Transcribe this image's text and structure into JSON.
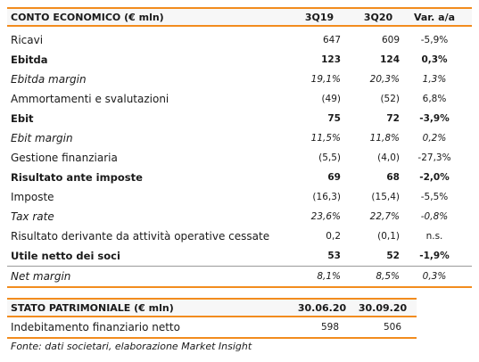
{
  "income": {
    "title": "CONTO ECONOMICO (€ mln)",
    "col1": "3Q19",
    "col2": "3Q20",
    "col3": "Var. a/a",
    "rows": [
      {
        "label": "Ricavi",
        "v1": "647",
        "v2": "609",
        "v3": "-5,9%"
      },
      {
        "label": "Ebitda",
        "v1": "123",
        "v2": "124",
        "v3": "0,3%"
      },
      {
        "label": "Ebitda margin",
        "v1": "19,1%",
        "v2": "20,3%",
        "v3": "1,3%"
      },
      {
        "label": "Ammortamenti e svalutazioni",
        "v1": "(49)",
        "v2": "(52)",
        "v3": "6,8%"
      },
      {
        "label": "Ebit",
        "v1": "75",
        "v2": "72",
        "v3": "-3,9%"
      },
      {
        "label": "Ebit margin",
        "v1": "11,5%",
        "v2": "11,8%",
        "v3": "0,2%"
      },
      {
        "label": "Gestione finanziaria",
        "v1": "(5,5)",
        "v2": "(4,0)",
        "v3": "-27,3%"
      },
      {
        "label": "Risultato ante imposte",
        "v1": "69",
        "v2": "68",
        "v3": "-2,0%"
      },
      {
        "label": "Imposte",
        "v1": "(16,3)",
        "v2": "(15,4)",
        "v3": "-5,5%"
      },
      {
        "label": "Tax rate",
        "v1": "23,6%",
        "v2": "22,7%",
        "v3": "-0,8%"
      },
      {
        "label": "Risultato derivante da attività operative cessate",
        "v1": "0,2",
        "v2": "(0,1)",
        "v3": "n.s."
      },
      {
        "label": "Utile netto dei soci",
        "v1": "53",
        "v2": "52",
        "v3": "-1,9%"
      },
      {
        "label": "Net margin",
        "v1": "8,1%",
        "v2": "8,5%",
        "v3": "0,3%"
      }
    ]
  },
  "balance": {
    "title": "STATO PATRIMONIALE  (€ mln)",
    "col1": "30.06.20",
    "col2": "30.09.20",
    "rows": [
      {
        "label": "Indebitamento finanziario netto",
        "v1": "598",
        "v2": "506"
      }
    ]
  },
  "source": "Fonte: dati societari, elaborazione Market Insight"
}
